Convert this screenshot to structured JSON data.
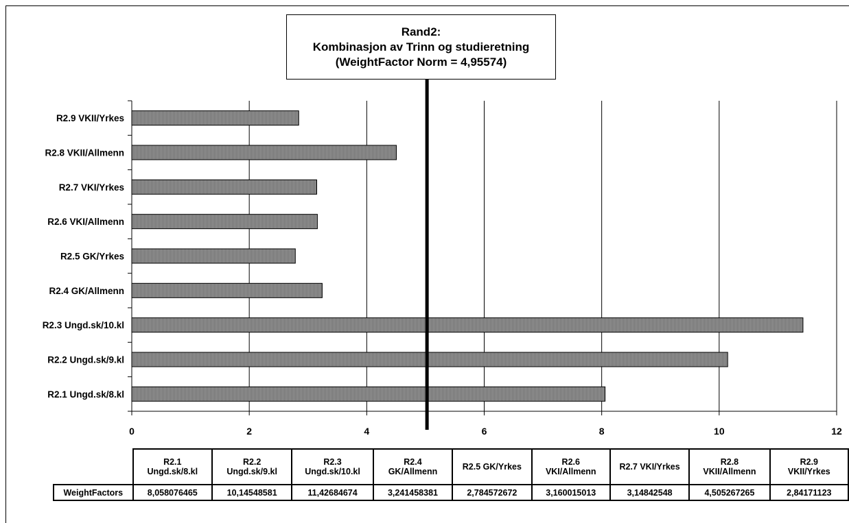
{
  "chart_data": {
    "type": "bar",
    "orientation": "horizontal",
    "title_lines": [
      "Rand2:",
      "Kombinasjon av Trinn og studieretning",
      "(WeightFactor Norm = 4,95574)"
    ],
    "categories": [
      "R2.1 Ungd.sk/8.kl",
      "R2.2 Ungd.sk/9.kl",
      "R2.3 Ungd.sk/10.kl",
      "R2.4 GK/Allmenn",
      "R2.5 GK/Yrkes",
      "R2.6 VKI/Allmenn",
      "R2.7 VKI/Yrkes",
      "R2.8 VKII/Allmenn",
      "R2.9 VKII/Yrkes"
    ],
    "series": [
      {
        "name": "WeightFactors",
        "values": [
          8.058076465,
          10.14548581,
          11.42684674,
          3.241458381,
          2.784572672,
          3.160015013,
          3.14842548,
          4.505267265,
          2.84171123
        ]
      }
    ],
    "reference_line": 4.95574,
    "xlim": [
      0,
      12
    ],
    "xticks": [
      "0",
      "2",
      "4",
      "6",
      "8",
      "10",
      "12"
    ],
    "grid": true,
    "bar_color": "#8c8c8c",
    "table": {
      "row_label": "WeightFactors",
      "headers": [
        [
          "R2.1",
          "Ungd.sk/8.kl"
        ],
        [
          "R2.2",
          "Ungd.sk/9.kl"
        ],
        [
          "R2.3",
          "Ungd.sk/10.kl"
        ],
        [
          "R2.4",
          "GK/Allmenn"
        ],
        [
          "R2.5 GK/Yrkes"
        ],
        [
          "R2.6",
          "VKI/Allmenn"
        ],
        [
          "R2.7 VKI/Yrkes"
        ],
        [
          "R2.8",
          "VKII/Allmenn"
        ],
        [
          "R2.9",
          "VKII/Yrkes"
        ]
      ],
      "values": [
        "8,058076465",
        "10,14548581",
        "11,42684674",
        "3,241458381",
        "2,784572672",
        "3,160015013",
        "3,14842548",
        "4,505267265",
        "2,84171123"
      ]
    }
  }
}
